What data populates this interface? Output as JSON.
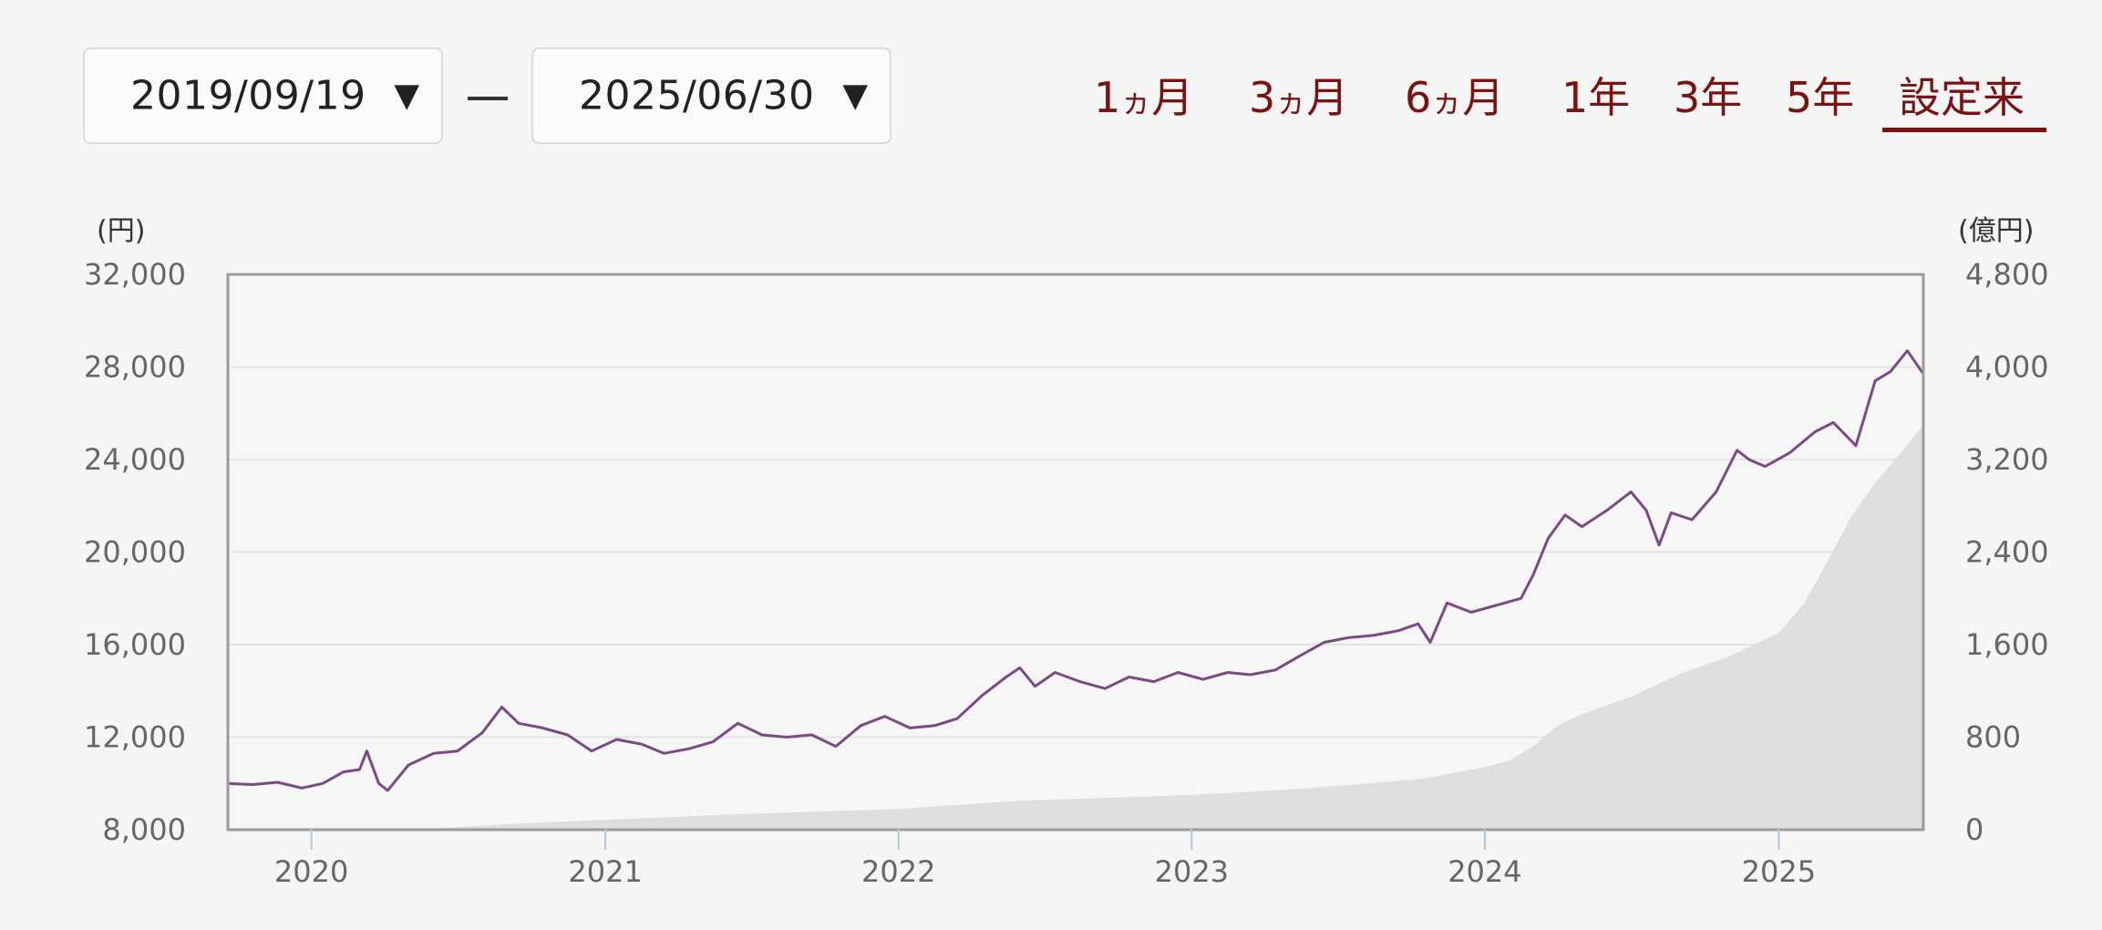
{
  "controls": {
    "start_date": "2019/09/19",
    "end_date": "2025/06/30",
    "dropdown_arrow": "▼",
    "separator": "ー"
  },
  "ranges": [
    {
      "num": "1",
      "kana": "ヵ",
      "unit": "月",
      "selected": false
    },
    {
      "num": "3",
      "kana": "ヵ",
      "unit": "月",
      "selected": false
    },
    {
      "num": "6",
      "kana": "ヵ",
      "unit": "月",
      "selected": false
    },
    {
      "num": "1",
      "kana": "",
      "unit": "年",
      "selected": false
    },
    {
      "num": "3",
      "kana": "",
      "unit": "年",
      "selected": false
    },
    {
      "num": "5",
      "kana": "",
      "unit": "年",
      "selected": false
    },
    {
      "num": "",
      "kana": "",
      "unit": "設定来",
      "selected": true
    }
  ],
  "colors": {
    "accent": "#7a1212",
    "price_line": "#7b4a85",
    "area_fill": "#dedede",
    "grid": "#e4e4e4",
    "frame": "#9a9a9a"
  },
  "chart_data": {
    "type": "line",
    "left_unit": "(円)",
    "right_unit": "(億円)",
    "y_left": {
      "min": 8000,
      "max": 32000,
      "ticks": [
        "32,000",
        "28,000",
        "24,000",
        "20,000",
        "16,000",
        "12,000",
        "8,000"
      ]
    },
    "y_right": {
      "min": 0,
      "max": 4800,
      "ticks": [
        "4,800",
        "4,000",
        "3,200",
        "2,400",
        "1,600",
        "800",
        "0"
      ]
    },
    "x_range": [
      "2019-09-19",
      "2025-06-30"
    ],
    "x_ticks": [
      {
        "label": "2020",
        "date": "2020-01-01"
      },
      {
        "label": "2021",
        "date": "2021-01-01"
      },
      {
        "label": "2022",
        "date": "2022-01-01"
      },
      {
        "label": "2023",
        "date": "2023-01-01"
      },
      {
        "label": "2024",
        "date": "2024-01-01"
      },
      {
        "label": "2025",
        "date": "2025-01-01"
      }
    ],
    "grid": true,
    "series": [
      {
        "axis": "left",
        "style": "line",
        "points": [
          [
            "2019-09-19",
            10000
          ],
          [
            "2019-10-20",
            9950
          ],
          [
            "2019-11-20",
            10050
          ],
          [
            "2019-12-20",
            9800
          ],
          [
            "2020-01-15",
            10000
          ],
          [
            "2020-02-10",
            10500
          ],
          [
            "2020-03-01",
            10600
          ],
          [
            "2020-03-10",
            11400
          ],
          [
            "2020-03-25",
            10000
          ],
          [
            "2020-04-05",
            9700
          ],
          [
            "2020-05-01",
            10800
          ],
          [
            "2020-06-01",
            11300
          ],
          [
            "2020-07-01",
            11400
          ],
          [
            "2020-08-01",
            12200
          ],
          [
            "2020-08-25",
            13300
          ],
          [
            "2020-09-15",
            12600
          ],
          [
            "2020-10-15",
            12400
          ],
          [
            "2020-11-15",
            12100
          ],
          [
            "2020-12-15",
            11400
          ],
          [
            "2021-01-15",
            11900
          ],
          [
            "2021-02-15",
            11700
          ],
          [
            "2021-03-15",
            11300
          ],
          [
            "2021-04-15",
            11500
          ],
          [
            "2021-05-15",
            11800
          ],
          [
            "2021-06-15",
            12600
          ],
          [
            "2021-07-15",
            12100
          ],
          [
            "2021-08-15",
            12000
          ],
          [
            "2021-09-15",
            12100
          ],
          [
            "2021-10-15",
            11600
          ],
          [
            "2021-11-15",
            12500
          ],
          [
            "2021-12-15",
            12900
          ],
          [
            "2022-01-15",
            12400
          ],
          [
            "2022-02-15",
            12500
          ],
          [
            "2022-03-15",
            12800
          ],
          [
            "2022-04-15",
            13800
          ],
          [
            "2022-05-15",
            14600
          ],
          [
            "2022-06-01",
            15000
          ],
          [
            "2022-06-20",
            14200
          ],
          [
            "2022-07-15",
            14800
          ],
          [
            "2022-08-15",
            14400
          ],
          [
            "2022-09-15",
            14100
          ],
          [
            "2022-10-15",
            14600
          ],
          [
            "2022-11-15",
            14400
          ],
          [
            "2022-12-15",
            14800
          ],
          [
            "2023-01-15",
            14500
          ],
          [
            "2023-02-15",
            14800
          ],
          [
            "2023-03-15",
            14700
          ],
          [
            "2023-04-15",
            14900
          ],
          [
            "2023-05-15",
            15500
          ],
          [
            "2023-06-15",
            16100
          ],
          [
            "2023-07-15",
            16300
          ],
          [
            "2023-08-15",
            16400
          ],
          [
            "2023-09-15",
            16600
          ],
          [
            "2023-10-10",
            16900
          ],
          [
            "2023-10-25",
            16100
          ],
          [
            "2023-11-15",
            17800
          ],
          [
            "2023-12-15",
            17400
          ],
          [
            "2024-01-15",
            17700
          ],
          [
            "2024-02-15",
            18000
          ],
          [
            "2024-03-01",
            19000
          ],
          [
            "2024-03-20",
            20600
          ],
          [
            "2024-04-10",
            21600
          ],
          [
            "2024-05-01",
            21100
          ],
          [
            "2024-06-01",
            21800
          ],
          [
            "2024-07-01",
            22600
          ],
          [
            "2024-07-20",
            21800
          ],
          [
            "2024-08-05",
            20300
          ],
          [
            "2024-08-20",
            21700
          ],
          [
            "2024-09-15",
            21400
          ],
          [
            "2024-10-15",
            22600
          ],
          [
            "2024-11-10",
            24400
          ],
          [
            "2024-11-25",
            24000
          ],
          [
            "2024-12-15",
            23700
          ],
          [
            "2025-01-15",
            24300
          ],
          [
            "2025-02-15",
            25200
          ],
          [
            "2025-03-10",
            25600
          ],
          [
            "2025-04-07",
            24600
          ],
          [
            "2025-05-01",
            27400
          ],
          [
            "2025-05-20",
            27800
          ],
          [
            "2025-06-10",
            28700
          ],
          [
            "2025-06-30",
            27700
          ]
        ]
      },
      {
        "axis": "right",
        "style": "area",
        "points": [
          [
            "2019-09-19",
            0
          ],
          [
            "2020-06-01",
            10
          ],
          [
            "2020-09-01",
            50
          ],
          [
            "2021-06-01",
            130
          ],
          [
            "2022-01-01",
            180
          ],
          [
            "2022-06-01",
            250
          ],
          [
            "2023-01-01",
            300
          ],
          [
            "2023-06-01",
            360
          ],
          [
            "2023-10-15",
            440
          ],
          [
            "2024-01-01",
            540
          ],
          [
            "2024-02-01",
            600
          ],
          [
            "2024-03-01",
            720
          ],
          [
            "2024-04-01",
            900
          ],
          [
            "2024-05-01",
            1000
          ],
          [
            "2024-07-01",
            1150
          ],
          [
            "2024-09-01",
            1350
          ],
          [
            "2024-11-01",
            1500
          ],
          [
            "2025-01-01",
            1700
          ],
          [
            "2025-02-01",
            1950
          ],
          [
            "2025-03-01",
            2300
          ],
          [
            "2025-04-01",
            2700
          ],
          [
            "2025-05-01",
            3000
          ],
          [
            "2025-06-01",
            3250
          ],
          [
            "2025-06-30",
            3500
          ]
        ]
      }
    ]
  }
}
